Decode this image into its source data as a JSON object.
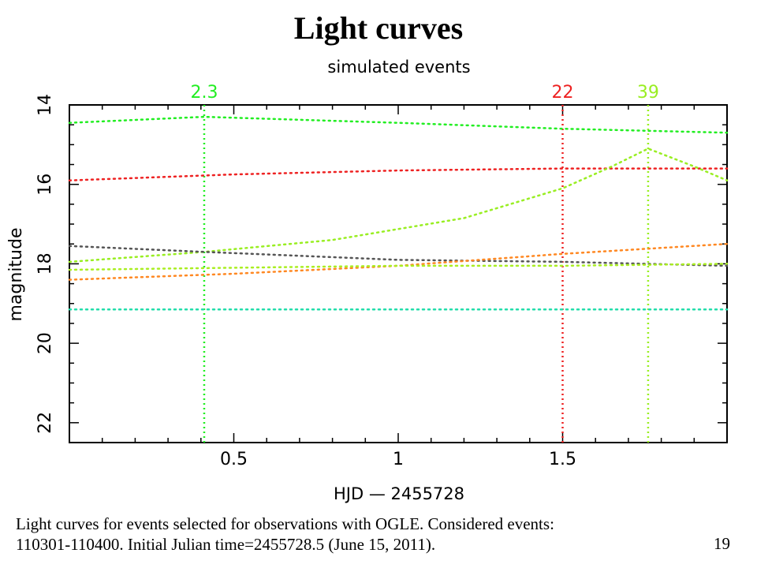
{
  "slide": {
    "title": "Light curves",
    "caption_line1": "Light curves for events selected for observations with OGLE. Considered events:",
    "caption_line2": "110301-110400. Initial Julian time=2455728.5 (June 15, 2011).",
    "page_number": "19"
  },
  "chart_data": {
    "type": "line",
    "title": "simulated events",
    "xlabel": "HJD — 2455728",
    "ylabel": "magnitude",
    "xlim": [
      0,
      2
    ],
    "ylim": [
      22.5,
      14
    ],
    "y_inverted": true,
    "x_major_ticks": [
      0.5,
      1,
      1.5
    ],
    "x_tick_labels": [
      "0.5",
      "1",
      "1.5"
    ],
    "y_major_ticks": [
      14,
      16,
      18,
      20,
      22
    ],
    "y_tick_labels": [
      "14",
      "16",
      "18",
      "20",
      "22"
    ],
    "grid": false,
    "markers": [
      {
        "label": "2.3",
        "x": 0.41,
        "color": "#22ee22"
      },
      {
        "label": "22",
        "x": 1.5,
        "color": "#ee2222"
      },
      {
        "label": "39",
        "x": 1.76,
        "color": "#99ee22"
      }
    ],
    "series": [
      {
        "color": "#22ee22",
        "x": [
          0,
          0.41,
          1.0,
          1.5,
          2.0
        ],
        "y": [
          14.45,
          14.3,
          14.45,
          14.6,
          14.7
        ]
      },
      {
        "color": "#ee2222",
        "x": [
          0,
          0.5,
          1.0,
          1.5,
          2.0
        ],
        "y": [
          15.9,
          15.75,
          15.65,
          15.6,
          15.6
        ]
      },
      {
        "color": "#99ee22",
        "x": [
          0,
          0.41,
          0.8,
          1.2,
          1.5,
          1.65,
          1.76,
          1.9,
          2.0
        ],
        "y": [
          17.95,
          17.7,
          17.4,
          16.85,
          16.1,
          15.55,
          15.1,
          15.55,
          15.9
        ]
      },
      {
        "color": "#555555",
        "x": [
          0,
          0.41,
          1.0,
          1.5,
          2.0
        ],
        "y": [
          17.55,
          17.7,
          17.9,
          17.95,
          18.05
        ]
      },
      {
        "color": "#ff8822",
        "x": [
          0,
          0.5,
          1.0,
          1.5,
          2.0
        ],
        "y": [
          18.4,
          18.25,
          18.05,
          17.75,
          17.5
        ]
      },
      {
        "color": "#aaee22",
        "x": [
          0,
          0.5,
          1.0,
          1.5,
          2.0
        ],
        "y": [
          18.15,
          18.1,
          18.05,
          18.05,
          18.0
        ]
      },
      {
        "color": "#22ddaa",
        "x": [
          0,
          0.5,
          1.0,
          1.5,
          2.0
        ],
        "y": [
          19.15,
          19.15,
          19.15,
          19.15,
          19.15
        ]
      }
    ]
  }
}
